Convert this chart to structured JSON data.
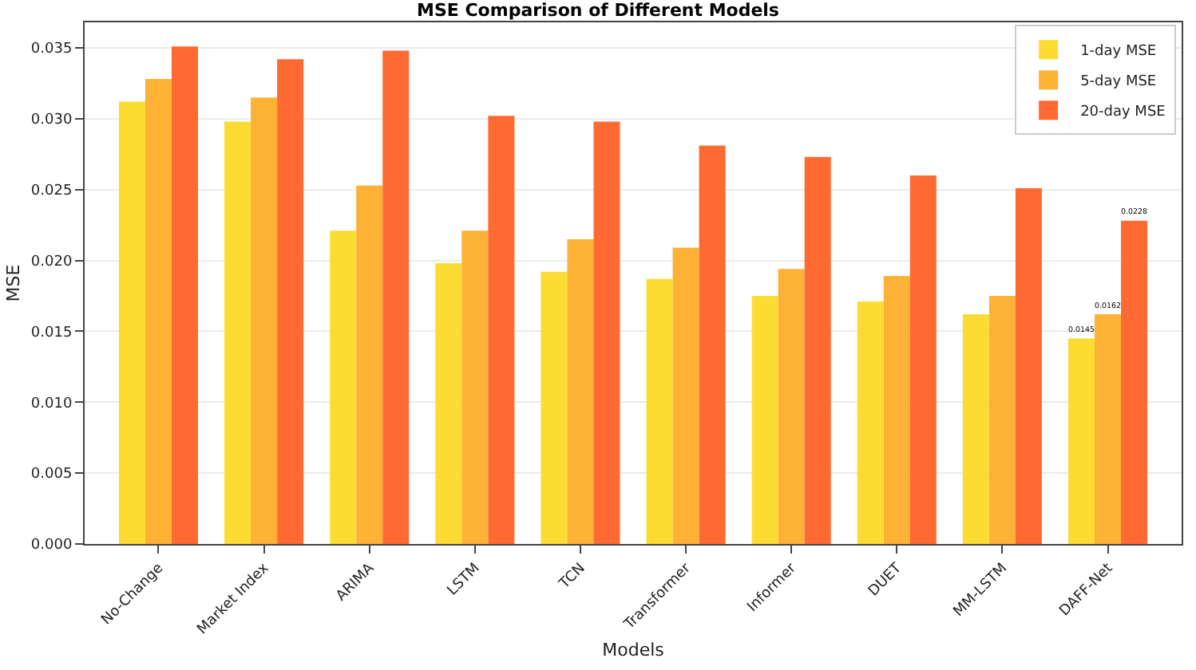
{
  "chart_data": {
    "type": "bar",
    "title": "MSE Comparison of Different Models",
    "xlabel": "Models",
    "ylabel": "MSE",
    "categories": [
      "No-Change",
      "Market Index",
      "ARIMA",
      "LSTM",
      "TCN",
      "Transformer",
      "Informer",
      "DUET",
      "MM-LSTM",
      "DAFF-Net"
    ],
    "series": [
      {
        "name": "1-day MSE",
        "color": "#fcdc33",
        "values": [
          0.0312,
          0.0298,
          0.0221,
          0.0198,
          0.0192,
          0.0187,
          0.0175,
          0.0171,
          0.0162,
          0.0145
        ],
        "value_labels": [
          null,
          null,
          null,
          null,
          null,
          null,
          null,
          null,
          null,
          "0.0145"
        ]
      },
      {
        "name": "5-day MSE",
        "color": "#fdb236",
        "values": [
          0.0328,
          0.0315,
          0.0253,
          0.0221,
          0.0215,
          0.0209,
          0.0194,
          0.0189,
          0.0175,
          0.0162
        ],
        "value_labels": [
          null,
          null,
          null,
          null,
          null,
          null,
          null,
          null,
          null,
          "0.0162"
        ]
      },
      {
        "name": "20-day MSE",
        "color": "#ff6a33",
        "values": [
          0.0351,
          0.0342,
          0.0348,
          0.0302,
          0.0298,
          0.0281,
          0.0273,
          0.026,
          0.0251,
          0.0228
        ],
        "value_labels": [
          null,
          null,
          null,
          null,
          null,
          null,
          null,
          null,
          null,
          "0.0228"
        ]
      }
    ],
    "ylim": [
      0,
      0.0368
    ],
    "yticks": [
      {
        "value": 0,
        "label": "0.000"
      },
      {
        "value": 0.005,
        "label": "0.005"
      },
      {
        "value": 0.01,
        "label": "0.010"
      },
      {
        "value": 0.015,
        "label": "0.015"
      },
      {
        "value": 0.02,
        "label": "0.020"
      },
      {
        "value": 0.025,
        "label": "0.025"
      },
      {
        "value": 0.03,
        "label": "0.030"
      },
      {
        "value": 0.035,
        "label": "0.035"
      }
    ],
    "grid": "y",
    "legend": "top right"
  }
}
